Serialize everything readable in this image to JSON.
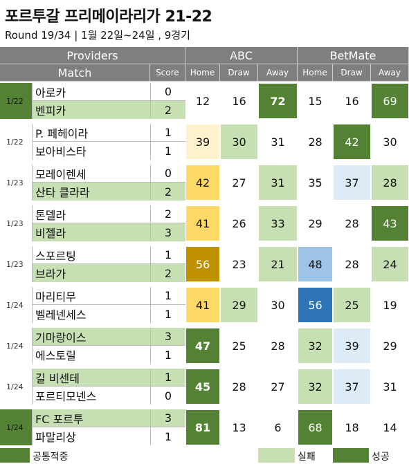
{
  "title": "포르투갈 프리메이라리가 21-22",
  "subtitle": "Round 19/34 | 1월 22일~24일 , 9경기",
  "header": {
    "providers_label": "Providers",
    "match_label": "Match",
    "score_label": "Score",
    "abc_label": "ABC",
    "betmate_label": "BetMate",
    "home": "Home",
    "draw": "Draw",
    "away": "Away"
  },
  "colors": {
    "header_bg": "#7f7f7f",
    "success": "#548235",
    "fail": "#c6e0b4",
    "common": "#548235",
    "gold1": "#fff2cc",
    "gold2": "#ffd966",
    "gold3": "#bf9000",
    "blue1": "#ddebf7",
    "blue2": "#9dc3e6",
    "blue3": "#2e75b6"
  },
  "matches": [
    {
      "date": "1/22",
      "date_style": "success",
      "home": "아로카",
      "away": "벤피카",
      "home_score": "0",
      "away_score": "2",
      "win": "away",
      "abc": [
        "12",
        "16",
        "72"
      ],
      "abc_styles": [
        "",
        "",
        "success"
      ],
      "bm": [
        "15",
        "16",
        "69"
      ],
      "bm_styles": [
        "",
        "",
        "success"
      ]
    },
    {
      "date": "1/22",
      "date_style": "",
      "home": "P. 페헤이라",
      "away": "보아비스타",
      "home_score": "1",
      "away_score": "1",
      "win": "",
      "abc": [
        "39",
        "30",
        "31"
      ],
      "abc_styles": [
        "gold1",
        "fail",
        ""
      ],
      "bm": [
        "28",
        "42",
        "30"
      ],
      "bm_styles": [
        "",
        "success",
        ""
      ]
    },
    {
      "date": "1/23",
      "date_style": "",
      "home": "모레이렌세",
      "away": "산타 클라라",
      "home_score": "0",
      "away_score": "2",
      "win": "away",
      "abc": [
        "42",
        "27",
        "31"
      ],
      "abc_styles": [
        "gold2",
        "",
        "fail"
      ],
      "bm": [
        "35",
        "37",
        "28"
      ],
      "bm_styles": [
        "",
        "blue1",
        "fail"
      ]
    },
    {
      "date": "1/23",
      "date_style": "",
      "home": "톤델라",
      "away": "비젤라",
      "home_score": "2",
      "away_score": "3",
      "win": "away",
      "abc": [
        "41",
        "26",
        "33"
      ],
      "abc_styles": [
        "gold2",
        "",
        "fail"
      ],
      "bm": [
        "29",
        "28",
        "43"
      ],
      "bm_styles": [
        "",
        "",
        "success"
      ]
    },
    {
      "date": "1/23",
      "date_style": "",
      "home": "스포르팅",
      "away": "브라가",
      "home_score": "1",
      "away_score": "2",
      "win": "away",
      "abc": [
        "56",
        "23",
        "21"
      ],
      "abc_styles": [
        "gold3",
        "",
        "fail"
      ],
      "bm": [
        "48",
        "28",
        "24"
      ],
      "bm_styles": [
        "blue2",
        "",
        "fail"
      ]
    },
    {
      "date": "1/24",
      "date_style": "",
      "home": "마리티무",
      "away": "벨레넨세스",
      "home_score": "1",
      "away_score": "1",
      "win": "",
      "abc": [
        "41",
        "29",
        "30"
      ],
      "abc_styles": [
        "gold2",
        "fail",
        ""
      ],
      "bm": [
        "56",
        "25",
        "19"
      ],
      "bm_styles": [
        "blue3",
        "fail",
        ""
      ]
    },
    {
      "date": "1/24",
      "date_style": "",
      "home": "기마랑이스",
      "away": "에스토릴",
      "home_score": "3",
      "away_score": "1",
      "win": "home",
      "abc": [
        "47",
        "25",
        "28"
      ],
      "abc_styles": [
        "success",
        "",
        ""
      ],
      "bm": [
        "32",
        "39",
        "29"
      ],
      "bm_styles": [
        "fail",
        "blue1",
        ""
      ]
    },
    {
      "date": "1/24",
      "date_style": "",
      "home": "길 비센테",
      "away": "포르티모넨스",
      "home_score": "1",
      "away_score": "0",
      "win": "home",
      "abc": [
        "45",
        "28",
        "27"
      ],
      "abc_styles": [
        "success",
        "",
        ""
      ],
      "bm": [
        "32",
        "37",
        "31"
      ],
      "bm_styles": [
        "fail",
        "blue1",
        ""
      ]
    },
    {
      "date": "1/24",
      "date_style": "success",
      "home": "FC 포르투",
      "away": "파말리상",
      "home_score": "3",
      "away_score": "1",
      "win": "home",
      "abc": [
        "81",
        "13",
        "6"
      ],
      "abc_styles": [
        "success",
        "",
        ""
      ],
      "bm": [
        "68",
        "18",
        "14"
      ],
      "bm_styles": [
        "success",
        "",
        ""
      ]
    }
  ],
  "legend": {
    "common": "공통적중",
    "fail": "실패",
    "success": "성공"
  }
}
